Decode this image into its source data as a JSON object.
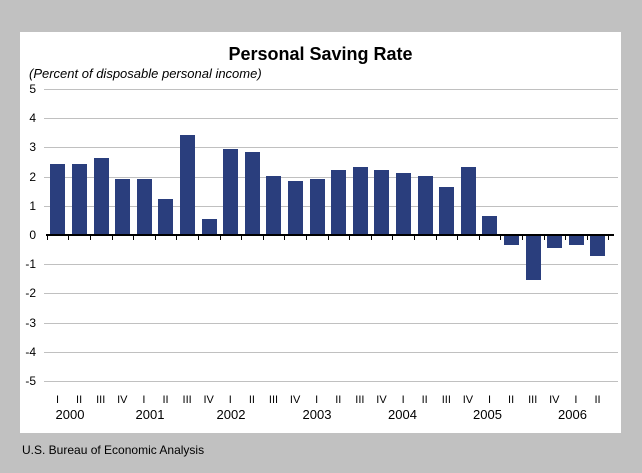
{
  "chart_data": {
    "type": "bar",
    "title": "Personal Saving Rate",
    "subtitle": "(Percent of disposable personal income)",
    "ylabel": "",
    "ylim": [
      -5,
      5
    ],
    "y_ticks": [
      5,
      4,
      3,
      2,
      1,
      0,
      -1,
      -2,
      -3,
      -4,
      -5
    ],
    "grid": true,
    "legend": "none",
    "bar_color": "#2a3e7d",
    "grid_color": "#c0c0c0",
    "axis_color": "#000000",
    "groups": [
      {
        "year": "2000",
        "quarters": [
          "I",
          "II",
          "III",
          "IV"
        ],
        "values": [
          2.4,
          2.4,
          2.6,
          1.9
        ]
      },
      {
        "year": "2001",
        "quarters": [
          "I",
          "II",
          "III",
          "IV"
        ],
        "values": [
          1.9,
          1.2,
          3.4,
          0.5
        ]
      },
      {
        "year": "2002",
        "quarters": [
          "I",
          "II",
          "III",
          "IV"
        ],
        "values": [
          2.9,
          2.8,
          2.0,
          1.8
        ]
      },
      {
        "year": "2003",
        "quarters": [
          "I",
          "II",
          "III",
          "IV"
        ],
        "values": [
          1.9,
          2.2,
          2.3,
          2.2
        ]
      },
      {
        "year": "2004",
        "quarters": [
          "I",
          "II",
          "III",
          "IV"
        ],
        "values": [
          2.1,
          2.0,
          1.6,
          2.3
        ]
      },
      {
        "year": "2005",
        "quarters": [
          "I",
          "II",
          "III",
          "IV"
        ],
        "values": [
          0.6,
          -0.3,
          -1.5,
          -0.4
        ]
      },
      {
        "year": "2006",
        "quarters": [
          "I",
          "II"
        ],
        "values": [
          -0.3,
          -0.7
        ]
      }
    ]
  },
  "footer": {
    "source": "U.S. Bureau of Economic Analysis"
  },
  "page": {
    "background_color": "#c1c1c1",
    "panel_color": "#ffffff"
  }
}
